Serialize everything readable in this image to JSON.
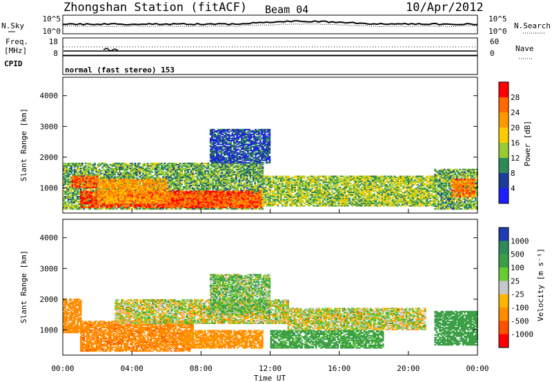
{
  "header": {
    "title": "Zhongshan Station (fitACF)",
    "beam": "Beam 04",
    "date": "10/Apr/2012"
  },
  "top_panels": {
    "nsky_label": "N.Sky",
    "nsky_ticks": [
      "10^5",
      "10^0"
    ],
    "nsearch_label": "N.Search",
    "nsearch_ticks": [
      "10^5",
      "10^0"
    ],
    "freq_label_1": "Freq.",
    "freq_label_2": "[MHz]",
    "freq_ticks": [
      "18",
      "8"
    ],
    "nave_label": "Nave",
    "nave_ticks": [
      "60",
      "0"
    ],
    "cpid_label": "CPID",
    "cpid_value": "normal (fast stereo) 153"
  },
  "colorbars": {
    "power": {
      "label": "Power [dB]",
      "ticks": [
        "28",
        "24",
        "20",
        "16",
        "12",
        "8",
        "4"
      ],
      "colors": [
        "#ff0000",
        "#ff6a00",
        "#ff9900",
        "#ffcc00",
        "#99cc33",
        "#2e8b57",
        "#1e3c9a",
        "#1e1eff"
      ]
    },
    "velocity": {
      "label": "Velocity [m s⁻¹]",
      "ticks": [
        "1000",
        "500",
        "100",
        "25",
        "-25",
        "-100",
        "-500",
        "-1000"
      ],
      "colors": [
        "#1e3cb4",
        "#2e8b57",
        "#3c9f46",
        "#66cc33",
        "#c8c8c8",
        "#ffb400",
        "#ff8c00",
        "#ff5000",
        "#ff0000"
      ]
    }
  },
  "axes": {
    "ylabel": "Slant Range [km]",
    "xlabel": "Time UT",
    "y_ticks": [
      "4000",
      "3000",
      "2000",
      "1000"
    ],
    "x_ticks": [
      "00:00",
      "04:00",
      "08:00",
      "12:00",
      "16:00",
      "20:00",
      "00:00"
    ]
  },
  "chart_data": [
    {
      "type": "heatmap",
      "title": "Zhongshan Station (fitACF) Beam 04 10/Apr/2012",
      "quantity": "Power [dB]",
      "xlabel": "Time UT",
      "ylabel": "Slant Range [km]",
      "xlim": [
        0,
        24
      ],
      "ylim": [
        180,
        4600
      ],
      "clim": [
        0,
        32
      ],
      "x_ticks": [
        "00:00",
        "04:00",
        "08:00",
        "12:00",
        "16:00",
        "20:00",
        "00:00"
      ],
      "y_ticks": [
        1000,
        2000,
        3000,
        4000
      ],
      "regions": [
        {
          "t": [
            0,
            11.6
          ],
          "r": [
            300,
            1800
          ],
          "level": 12
        },
        {
          "t": [
            1.0,
            11.5
          ],
          "r": [
            350,
            900
          ],
          "level": 28
        },
        {
          "t": [
            0.5,
            2.0
          ],
          "r": [
            1000,
            1400
          ],
          "level": 26
        },
        {
          "t": [
            2.0,
            6.0
          ],
          "r": [
            500,
            1300
          ],
          "level": 22
        },
        {
          "t": [
            6.0,
            11.5
          ],
          "r": [
            400,
            800
          ],
          "level": 26
        },
        {
          "t": [
            11.5,
            21.5
          ],
          "r": [
            400,
            1400
          ],
          "level": 14
        },
        {
          "t": [
            21.5,
            24
          ],
          "r": [
            300,
            1600
          ],
          "level": 12
        },
        {
          "t": [
            22.5,
            23.8
          ],
          "r": [
            700,
            1300
          ],
          "level": 24
        },
        {
          "t": [
            8.5,
            12.0
          ],
          "r": [
            1800,
            2900
          ],
          "level": 6
        }
      ]
    },
    {
      "type": "heatmap",
      "quantity": "Velocity [m s⁻¹]",
      "xlabel": "Time UT",
      "ylabel": "Slant Range [km]",
      "xlim": [
        0,
        24
      ],
      "ylim": [
        180,
        4600
      ],
      "clim": [
        -1000,
        1000
      ],
      "x_ticks": [
        "00:00",
        "04:00",
        "08:00",
        "12:00",
        "16:00",
        "20:00",
        "00:00"
      ],
      "y_ticks": [
        1000,
        2000,
        3000,
        4000
      ],
      "regions": [
        {
          "t": [
            0,
            1.0
          ],
          "r": [
            900,
            2000
          ],
          "v": -300
        },
        {
          "t": [
            1.0,
            7.5
          ],
          "r": [
            300,
            1300
          ],
          "v": -400
        },
        {
          "t": [
            7.0,
            11.5
          ],
          "r": [
            400,
            1000
          ],
          "v": -200
        },
        {
          "t": [
            3.0,
            13.0
          ],
          "r": [
            1200,
            2000
          ],
          "v": 0
        },
        {
          "t": [
            8.5,
            12.0
          ],
          "r": [
            1500,
            2800
          ],
          "v": 80
        },
        {
          "t": [
            12.0,
            18.5
          ],
          "r": [
            400,
            1000
          ],
          "v": 200
        },
        {
          "t": [
            13.0,
            21.0
          ],
          "r": [
            1000,
            1700
          ],
          "v": 0
        },
        {
          "t": [
            21.5,
            24
          ],
          "r": [
            500,
            1600
          ],
          "v": 300
        }
      ]
    }
  ]
}
